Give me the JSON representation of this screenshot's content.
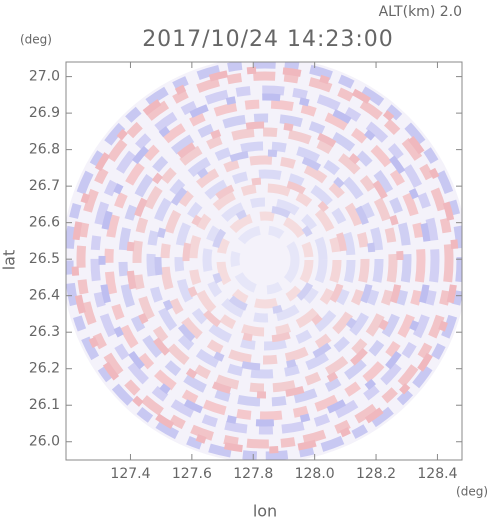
{
  "chart_data": {
    "type": "radar-image",
    "title": "2017/10/24 14:23:00",
    "subtitle": "ALT(km) 2.0",
    "x_label": "lon",
    "y_label": "lat",
    "x_unit": "(deg)",
    "y_unit": "(deg)",
    "xlim": [
      127.19,
      128.48
    ],
    "ylim": [
      25.95,
      27.04
    ],
    "xticks": [
      127.4,
      127.6,
      127.8,
      {
        "value": 128,
        "label": "128.0"
      },
      128.2,
      128.4
    ],
    "yticks": [
      {
        "value": 26,
        "label": "26.0"
      },
      26.1,
      26.2,
      26.3,
      26.4,
      26.5,
      26.6,
      26.7,
      26.8,
      26.9,
      {
        "value": 27,
        "label": "27.0"
      }
    ]
  }
}
